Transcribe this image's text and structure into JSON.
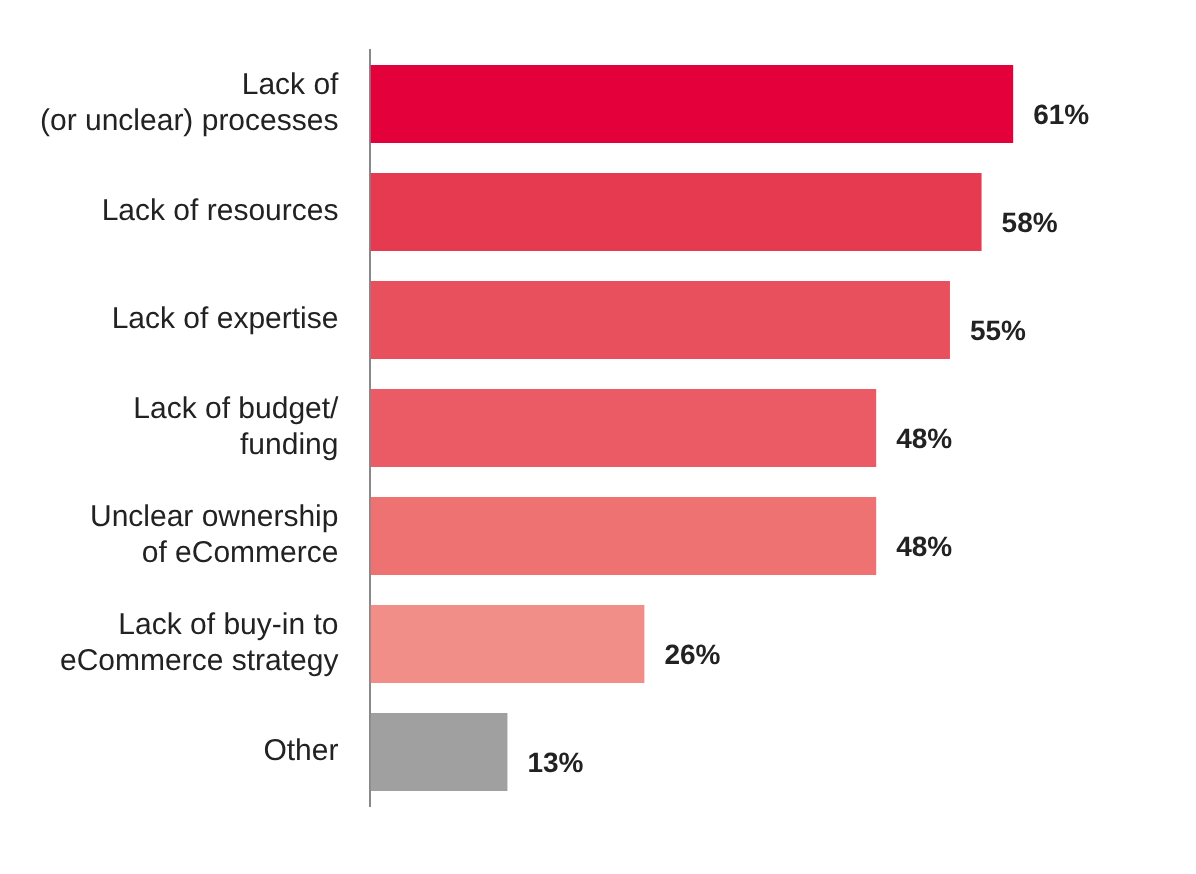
{
  "chart_data": {
    "type": "bar",
    "orientation": "horizontal",
    "categories": [
      "Lack of\n(or unclear) processes",
      "Lack of resources",
      "Lack of expertise",
      "Lack of budget/\nfunding",
      "Unclear ownership\nof eCommerce",
      "Lack of buy-in to\neCommerce strategy",
      "Other"
    ],
    "values": [
      61,
      58,
      55,
      48,
      48,
      26,
      13
    ],
    "value_labels": [
      "61%",
      "58%",
      "55%",
      "48%",
      "48%",
      "26%",
      "13%"
    ],
    "colors": [
      "#e4003b",
      "#e63a50",
      "#e9505e",
      "#eb5b66",
      "#ee7272",
      "#f28e88",
      "#a0a0a0"
    ],
    "tick_labels": "y"
  }
}
